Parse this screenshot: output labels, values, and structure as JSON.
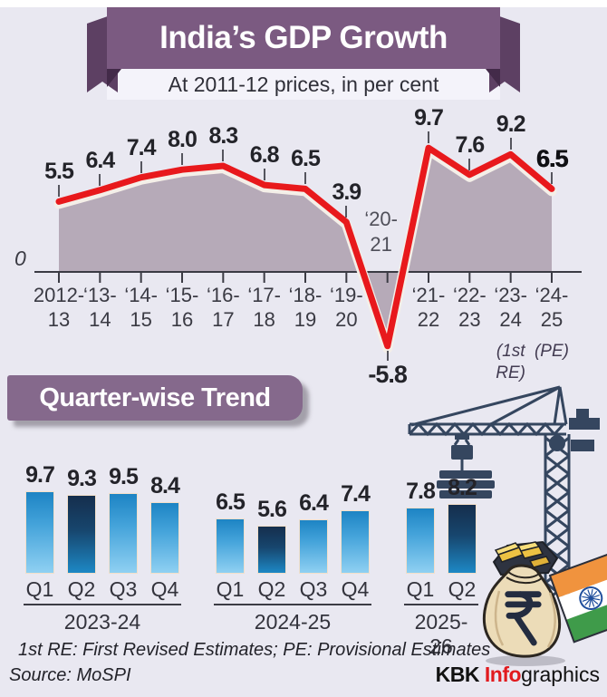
{
  "header": {
    "title": "India’s GDP Growth",
    "subtitle": "At 2011-12 prices, in per cent"
  },
  "section2_title": "Quarter-wise Trend",
  "footer": {
    "note": "1st RE: First Revised Estimates; PE: Provisional Estimates",
    "source": "Source: MoSPI",
    "credit": {
      "kbk": "KBK ",
      "info": "Info",
      "graphics": "graphics"
    }
  },
  "colors": {
    "background": "#e9e8f1",
    "ribbon": "#7b5a81",
    "ribbon_dark": "#5d4063",
    "ribbon_fold": "#432a49",
    "banner": "#85698c",
    "line_red": "#e8191c",
    "area_fill": "#b6aab8",
    "axis": "#3b3b44",
    "bar_light_top": "#1d84c4",
    "bar_light_bottom": "#8fd0f2",
    "bar_dark_top": "#152e4d",
    "bar_dark_bottom": "#1d88c5",
    "credit_red": "#e11a1e",
    "crane": "#35465f"
  },
  "chart_data": [
    {
      "type": "area",
      "title": "India's GDP Growth",
      "subtitle": "At 2011-12 prices, in per cent",
      "unit": "per cent",
      "x": [
        "2012-13",
        "2013-14",
        "2014-15",
        "2015-16",
        "2016-17",
        "2017-18",
        "2018-19",
        "2019-20",
        "2020-21",
        "2021-22",
        "2022-23",
        "2023-24",
        "2024-25"
      ],
      "values": [
        5.5,
        6.4,
        7.4,
        8.0,
        8.3,
        6.8,
        6.5,
        3.9,
        -5.8,
        9.7,
        7.6,
        9.2,
        6.5
      ],
      "value_labels": [
        "5.5",
        "6.4",
        "7.4",
        "8.0",
        "8.3",
        "6.8",
        "6.5",
        "3.9",
        "-5.8",
        "9.7",
        "7.6",
        "9.2",
        "6.5"
      ],
      "x_tick_lines": [
        [
          "2012-",
          "13"
        ],
        [
          "‘13-",
          "14"
        ],
        [
          "‘14-",
          "15"
        ],
        [
          "‘15-",
          "16"
        ],
        [
          "‘16-",
          "17"
        ],
        [
          "‘17-",
          "18"
        ],
        [
          "‘18-",
          "19"
        ],
        [
          "‘19-",
          "20"
        ],
        null,
        [
          "‘21-",
          "22"
        ],
        [
          "‘22-",
          "23"
        ],
        [
          "‘23-",
          "24"
        ],
        [
          "‘24-",
          "25"
        ]
      ],
      "in_chart_label": {
        "index": 8,
        "lines": [
          "‘20-",
          "21"
        ]
      },
      "annotations": [
        {
          "index": 11,
          "lines": [
            "(1st",
            "RE)"
          ]
        },
        {
          "index": 12,
          "lines": [
            "(PE)"
          ]
        }
      ],
      "zero_label": "0",
      "ylim": [
        -7,
        11
      ],
      "grid": false,
      "legend": false
    },
    {
      "type": "bar",
      "title": "Quarter-wise Trend",
      "highlight_category": "Q2",
      "groups": [
        {
          "year": "2023-24",
          "categories": [
            "Q1",
            "Q2",
            "Q3",
            "Q4"
          ],
          "values": [
            9.7,
            9.3,
            9.5,
            8.4
          ],
          "value_labels": [
            "9.7",
            "9.3",
            "9.5",
            "8.4"
          ]
        },
        {
          "year": "2024-25",
          "categories": [
            "Q1",
            "Q2",
            "Q3",
            "Q4"
          ],
          "values": [
            6.5,
            5.6,
            6.4,
            7.4
          ],
          "value_labels": [
            "6.5",
            "5.6",
            "6.4",
            "7.4"
          ]
        },
        {
          "year": "2025-26",
          "categories": [
            "Q1",
            "Q2"
          ],
          "values": [
            7.8,
            8.2
          ],
          "value_labels": [
            "7.8",
            "8.2"
          ]
        }
      ]
    }
  ]
}
